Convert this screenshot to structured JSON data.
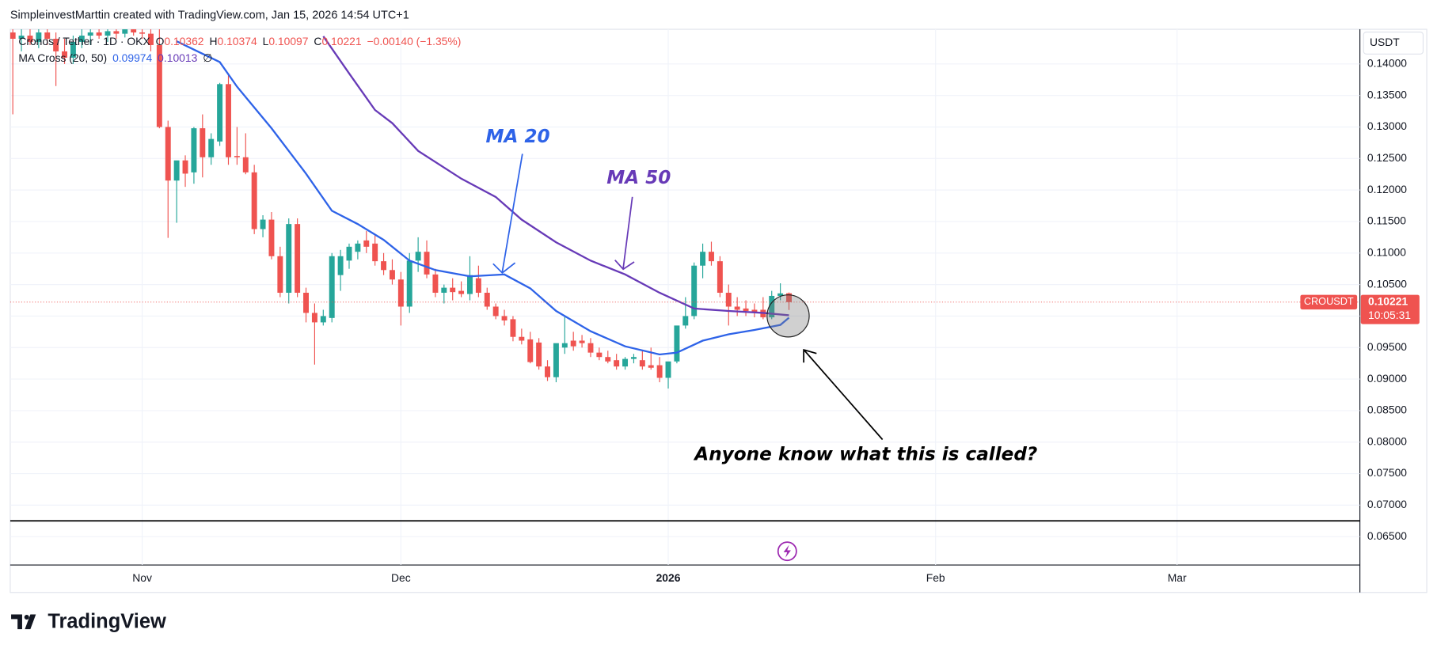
{
  "header": "SimpleinvestMarttin created with TradingView.com, Jan 15, 2026 14:54 UTC+1",
  "brand": "TradingView",
  "chart_data": {
    "type": "candlestick",
    "legend": {
      "symbol": "Cronos / Tether · 1D · OKX",
      "open_label": "O",
      "high_label": "H",
      "low_label": "L",
      "close_label": "C",
      "change": "−0.00140 (−1.35%)",
      "indicator": "MA Cross (20, 50)",
      "indicator_icon": "∅"
    },
    "currency": "USDT",
    "ticker": "CROUSDT",
    "countdown": "10:05:31",
    "up_color": "#26a69a",
    "down_color": "#ef5350",
    "xlim": [
      -15.3,
      141.2
    ],
    "xticks": [
      {
        "value": 0,
        "label": "Nov"
      },
      {
        "value": 30,
        "label": "Dec"
      },
      {
        "value": 61,
        "label": "2026"
      },
      {
        "value": 92,
        "label": "Feb"
      },
      {
        "value": 120,
        "label": "Mar"
      }
    ],
    "ylim": [
      0.0605,
      0.1455
    ],
    "yticks": [
      {
        "value": 0.065,
        "label": "0.06500"
      },
      {
        "value": 0.07,
        "label": "0.07000"
      },
      {
        "value": 0.075,
        "label": "0.07500"
      },
      {
        "value": 0.08,
        "label": "0.08000"
      },
      {
        "value": 0.085,
        "label": "0.08500"
      },
      {
        "value": 0.09,
        "label": "0.09000"
      },
      {
        "value": 0.095,
        "label": "0.09500"
      },
      {
        "value": 0.1,
        "label": "0.10000"
      },
      {
        "value": 0.105,
        "label": "0.10500"
      },
      {
        "value": 0.11,
        "label": "0.11000"
      },
      {
        "value": 0.115,
        "label": "0.11500"
      },
      {
        "value": 0.12,
        "label": "0.12000"
      },
      {
        "value": 0.125,
        "label": "0.12500"
      },
      {
        "value": 0.13,
        "label": "0.13000"
      },
      {
        "value": 0.135,
        "label": "0.13500"
      },
      {
        "value": 0.14,
        "label": "0.14000"
      }
    ],
    "grid": true,
    "hline": 0.0675,
    "candles": {
      "x": [
        -15,
        -14,
        -13,
        -12,
        -11,
        -10,
        -9,
        -8,
        -7,
        -6,
        -5,
        -4,
        -3,
        -2,
        -1,
        0,
        1,
        2,
        3,
        4,
        5,
        6,
        7,
        8,
        9,
        10,
        11,
        12,
        13,
        14,
        15,
        16,
        17,
        18,
        19,
        20,
        21,
        22,
        23,
        24,
        25,
        26,
        27,
        28,
        29,
        30,
        31,
        32,
        33,
        34,
        35,
        36,
        37,
        38,
        39,
        40,
        41,
        42,
        43,
        44,
        45,
        46,
        47,
        48,
        49,
        50,
        51,
        52,
        53,
        54,
        55,
        56,
        57,
        58,
        59,
        60,
        61,
        62,
        63,
        64,
        65,
        66,
        67,
        68,
        69,
        70,
        71,
        72,
        73,
        74,
        75
      ],
      "open": [
        0.145,
        0.144,
        0.1445,
        0.1435,
        0.145,
        0.144,
        0.142,
        0.141,
        0.1435,
        0.1445,
        0.145,
        0.1445,
        0.1452,
        0.1448,
        0.1455,
        0.145,
        0.1448,
        0.143,
        0.13,
        0.1215,
        0.1247,
        0.1228,
        0.1298,
        0.1252,
        0.1277,
        0.1368,
        0.1254,
        0.1252,
        0.1228,
        0.1138,
        0.1153,
        0.1095,
        0.1037,
        0.1146,
        0.1037,
        0.1005,
        0.099,
        0.0997,
        0.1065,
        0.1088,
        0.1102,
        0.112,
        0.1115,
        0.1087,
        0.1073,
        0.1058,
        0.1015,
        0.1088,
        0.1102,
        0.1066,
        0.1037,
        0.1045,
        0.104,
        0.1035,
        0.106,
        0.1037,
        0.1015,
        0.1,
        0.0995,
        0.0967,
        0.0963,
        0.0958,
        0.092,
        0.0903,
        0.095,
        0.0961,
        0.0961,
        0.0957,
        0.0942,
        0.0935,
        0.093,
        0.092,
        0.0932,
        0.093,
        0.0922,
        0.0922,
        0.0902,
        0.0928,
        0.0985,
        0.1,
        0.108,
        0.1102,
        0.1087,
        0.1037,
        0.1015,
        0.1012,
        0.101,
        0.101,
        0.0998,
        0.1032,
        0.10362
      ],
      "high": [
        0.146,
        0.1455,
        0.146,
        0.1455,
        0.146,
        0.145,
        0.144,
        0.1445,
        0.146,
        0.146,
        0.146,
        0.1458,
        0.146,
        0.146,
        0.1462,
        0.146,
        0.146,
        0.146,
        0.131,
        0.1235,
        0.1255,
        0.13,
        0.132,
        0.129,
        0.137,
        0.1385,
        0.13,
        0.129,
        0.124,
        0.116,
        0.1165,
        0.111,
        0.1155,
        0.1155,
        0.1045,
        0.102,
        0.101,
        0.11,
        0.1105,
        0.1115,
        0.112,
        0.1135,
        0.113,
        0.11,
        0.109,
        0.107,
        0.11,
        0.1125,
        0.112,
        0.1075,
        0.105,
        0.106,
        0.1055,
        0.1095,
        0.108,
        0.1045,
        0.102,
        0.101,
        0.1,
        0.098,
        0.0975,
        0.0965,
        0.093,
        0.0915,
        0.1,
        0.0975,
        0.097,
        0.0965,
        0.095,
        0.0945,
        0.094,
        0.0935,
        0.094,
        0.0945,
        0.095,
        0.0935,
        0.0925,
        0.0965,
        0.103,
        0.1085,
        0.1115,
        0.1118,
        0.1095,
        0.105,
        0.103,
        0.1025,
        0.102,
        0.103,
        0.104,
        0.1052,
        0.10374
      ],
      "low": [
        0.132,
        0.142,
        0.143,
        0.1425,
        0.143,
        0.1365,
        0.14,
        0.14,
        0.1425,
        0.143,
        0.144,
        0.1435,
        0.144,
        0.1442,
        0.1445,
        0.144,
        0.142,
        0.1298,
        0.1124,
        0.1148,
        0.1205,
        0.121,
        0.122,
        0.124,
        0.127,
        0.124,
        0.124,
        0.1225,
        0.113,
        0.1125,
        0.109,
        0.103,
        0.102,
        0.103,
        0.099,
        0.0923,
        0.0985,
        0.099,
        0.104,
        0.1075,
        0.109,
        0.11,
        0.108,
        0.1065,
        0.105,
        0.0985,
        0.1005,
        0.107,
        0.106,
        0.103,
        0.102,
        0.1025,
        0.103,
        0.1025,
        0.103,
        0.101,
        0.0995,
        0.0985,
        0.096,
        0.0955,
        0.0925,
        0.0915,
        0.0897,
        0.0895,
        0.094,
        0.0945,
        0.095,
        0.0935,
        0.093,
        0.0925,
        0.0915,
        0.0915,
        0.0925,
        0.0915,
        0.0915,
        0.0895,
        0.0885,
        0.0925,
        0.098,
        0.0995,
        0.106,
        0.108,
        0.103,
        0.0985,
        0.1,
        0.1,
        0.0998,
        0.0995,
        0.0995,
        0.1025,
        0.10097
      ],
      "close": [
        0.144,
        0.1445,
        0.1435,
        0.145,
        0.144,
        0.142,
        0.141,
        0.1435,
        0.1445,
        0.145,
        0.1445,
        0.1452,
        0.1448,
        0.1455,
        0.145,
        0.1448,
        0.143,
        0.13,
        0.1215,
        0.1247,
        0.1226,
        0.1298,
        0.1252,
        0.1281,
        0.1368,
        0.1252,
        0.1252,
        0.1228,
        0.1138,
        0.1153,
        0.1095,
        0.1037,
        0.1146,
        0.1037,
        0.1005,
        0.099,
        0.1,
        0.1095,
        0.1095,
        0.111,
        0.1115,
        0.111,
        0.1087,
        0.1073,
        0.1058,
        0.1015,
        0.1088,
        0.1102,
        0.1066,
        0.1037,
        0.1045,
        0.1038,
        0.1035,
        0.1065,
        0.1037,
        0.1015,
        0.1,
        0.0993,
        0.0967,
        0.0961,
        0.0927,
        0.092,
        0.0903,
        0.0957,
        0.0957,
        0.0952,
        0.0957,
        0.0942,
        0.0935,
        0.0928,
        0.092,
        0.0932,
        0.0935,
        0.092,
        0.0918,
        0.0902,
        0.0928,
        0.0985,
        0.1,
        0.108,
        0.1102,
        0.1087,
        0.1037,
        0.1015,
        0.101,
        0.1008,
        0.1005,
        0.0998,
        0.1032,
        0.1036,
        0.10221
      ]
    },
    "series": [
      {
        "name": "MA 20",
        "color": "#2e63e8",
        "x": [
          4,
          9,
          11,
          15,
          19,
          22,
          25,
          28,
          31,
          34,
          38,
          42,
          45,
          48,
          52,
          56,
          60,
          62,
          65,
          68,
          71,
          74,
          75
        ],
        "values": [
          0.1436,
          0.1403,
          0.1364,
          0.1298,
          0.1226,
          0.1167,
          0.1146,
          0.1121,
          0.1088,
          0.1073,
          0.1063,
          0.1066,
          0.1044,
          0.1008,
          0.0976,
          0.0952,
          0.0939,
          0.0942,
          0.0961,
          0.0971,
          0.0978,
          0.0986,
          0.09974
        ]
      },
      {
        "name": "MA 50",
        "color": "#673ab7",
        "x": [
          21,
          24,
          27,
          29,
          32,
          37,
          41,
          44,
          48,
          52,
          56,
          60,
          64,
          68,
          72,
          75
        ],
        "values": [
          0.1444,
          0.1385,
          0.1327,
          0.1306,
          0.1262,
          0.1218,
          0.1189,
          0.1153,
          0.1117,
          0.1088,
          0.1066,
          0.1037,
          0.1012,
          0.1008,
          0.1005,
          0.10013
        ]
      }
    ],
    "annotations": [
      "Anyone know what this is called?"
    ]
  }
}
